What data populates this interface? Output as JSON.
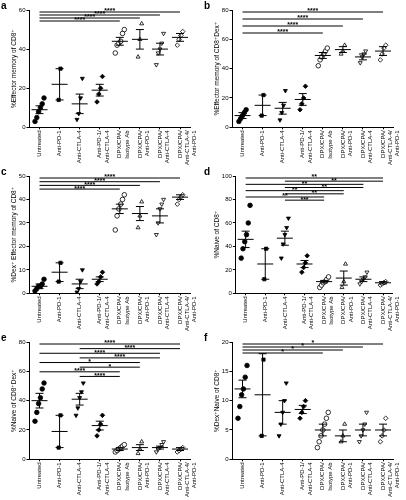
{
  "chart_data": [
    {
      "panel": "a",
      "type": "scatter",
      "y_label": "%Effector memory of CD8⁺",
      "categories": [
        "Untreated",
        "Anti-PD-1",
        "Anti-CTLA-4",
        "Anti-PD-1/\nAnti-CTLA-4",
        "DPX/CPA/\nIsotype Ab",
        "DPX/CPA/\nAnti-PD-1",
        "DPX/CPA/\nAnti-CTLA-4",
        "DPX/CPA/\nAnti-CTLA-4/\nAnti-PD-1"
      ],
      "groups": [
        {
          "marker": "circle",
          "points": [
            3,
            5,
            8,
            10,
            12,
            15
          ],
          "mean": 9,
          "error": 2
        },
        {
          "marker": "square",
          "points": [
            14,
            30
          ],
          "mean": 22,
          "error": 8
        },
        {
          "marker": "triangle-down",
          "points": [
            4,
            7,
            15,
            25
          ],
          "mean": 12,
          "error": 5
        },
        {
          "marker": "diamond",
          "points": [
            13,
            17,
            20,
            26
          ],
          "mean": 19,
          "error": 3
        },
        {
          "marker": "circle-open",
          "points": [
            38,
            42,
            43,
            44,
            48,
            50
          ],
          "mean": 44,
          "error": 2
        },
        {
          "marker": "triangle-open",
          "points": [
            36,
            45,
            53
          ],
          "mean": 45,
          "error": 5
        },
        {
          "marker": "triangle-down-open",
          "points": [
            32,
            38,
            40,
            43,
            48
          ],
          "mean": 40,
          "error": 3
        },
        {
          "marker": "diamond-open",
          "points": [
            42,
            45,
            47,
            49
          ],
          "mean": 46,
          "error": 2
        }
      ],
      "ylim": [
        0,
        60
      ],
      "yticks": [
        0,
        20,
        40,
        60
      ],
      "comparisons": [
        {
          "from": "Untreated",
          "to": "DPX/CPA/\nAnti-CTLA-4/\nAnti-PD-1",
          "label": "****"
        },
        {
          "from": "Untreated",
          "to": "DPX/CPA/\nAnti-CTLA-4",
          "label": "****"
        },
        {
          "from": "Untreated",
          "to": "DPX/CPA/\nAnti-PD-1",
          "label": "****"
        },
        {
          "from": "Untreated",
          "to": "DPX/CPA/\nIsotype Ab",
          "label": "****"
        }
      ]
    },
    {
      "panel": "b",
      "type": "scatter",
      "y_label": "%Effector memory of CD8⁺Dex⁺",
      "categories": [
        "Untreated",
        "Anti-PD-1",
        "Anti-CTLA-4",
        "Anti-PD-1/\nAnti-CTLA-4",
        "DPX/CPA/\nIsotype Ab",
        "DPX/CPA/\nAnti-PD-1",
        "DPX/CPA/\nAnti-CTLA-4",
        "DPX/CPA/\nAnti-CTLA-4/\nAnti-PD-1"
      ],
      "groups": [
        {
          "marker": "circle",
          "points": [
            4,
            6,
            8,
            10,
            12
          ],
          "mean": 8,
          "error": 2
        },
        {
          "marker": "square",
          "points": [
            8,
            22
          ],
          "mean": 15,
          "error": 7
        },
        {
          "marker": "triangle-down",
          "points": [
            5,
            10,
            15,
            25
          ],
          "mean": 13,
          "error": 4
        },
        {
          "marker": "diamond",
          "points": [
            12,
            16,
            20,
            28
          ],
          "mean": 19,
          "error": 4
        },
        {
          "marker": "circle-open",
          "points": [
            42,
            46,
            48,
            50,
            52,
            54
          ],
          "mean": 49,
          "error": 2
        },
        {
          "marker": "triangle-open",
          "points": [
            50,
            52,
            56
          ],
          "mean": 53,
          "error": 2
        },
        {
          "marker": "triangle-down-open",
          "points": [
            44,
            48,
            50,
            52
          ],
          "mean": 48,
          "error": 2
        },
        {
          "marker": "diamond-open",
          "points": [
            46,
            50,
            54,
            56
          ],
          "mean": 52,
          "error": 3
        }
      ],
      "ylim": [
        0,
        80
      ],
      "yticks": [
        0,
        20,
        40,
        60,
        80
      ],
      "comparisons": [
        {
          "from": "Untreated",
          "to": "DPX/CPA/\nAnti-CTLA-4/\nAnti-PD-1",
          "label": "****"
        },
        {
          "from": "Untreated",
          "to": "DPX/CPA/\nAnti-CTLA-4",
          "label": "****"
        },
        {
          "from": "Untreated",
          "to": "DPX/CPA/\nAnti-PD-1",
          "label": "****"
        },
        {
          "from": "Untreated",
          "to": "DPX/CPA/\nIsotype Ab",
          "label": "****"
        }
      ]
    },
    {
      "panel": "c",
      "type": "scatter",
      "y_label": "%Dex⁺ Effector memory of CD8⁺",
      "categories": [
        "Untreated",
        "Anti-PD-1",
        "Anti-CTLA-4",
        "Anti-PD-1/\nAnti-CTLA-4",
        "DPX/CPA/\nIsotype Ab",
        "DPX/CPA/\nAnti-PD-1",
        "DPX/CPA/\nAnti-CTLA-4",
        "DPX/CPA/\nAnti-CTLA-4/\nAnti-PD-1"
      ],
      "groups": [
        {
          "marker": "circle",
          "points": [
            1,
            2,
            3,
            3,
            4,
            6
          ],
          "mean": 3,
          "error": 1
        },
        {
          "marker": "square",
          "points": [
            5,
            13
          ],
          "mean": 9,
          "error": 4
        },
        {
          "marker": "triangle-down",
          "points": [
            0.5,
            2,
            5,
            10
          ],
          "mean": 4,
          "error": 2
        },
        {
          "marker": "diamond",
          "points": [
            4,
            5,
            7,
            9
          ],
          "mean": 6,
          "error": 1
        },
        {
          "marker": "circle-open",
          "points": [
            27,
            33,
            36,
            38,
            40,
            42
          ],
          "mean": 36,
          "error": 2
        },
        {
          "marker": "triangle-open",
          "points": [
            28,
            33,
            39
          ],
          "mean": 34,
          "error": 3
        },
        {
          "marker": "triangle-down-open",
          "points": [
            25,
            30,
            36,
            38,
            40
          ],
          "mean": 33,
          "error": 3
        },
        {
          "marker": "diamond-open",
          "points": [
            38,
            40,
            41,
            42
          ],
          "mean": 41,
          "error": 1
        }
      ],
      "ylim": [
        0,
        50
      ],
      "yticks": [
        0,
        10,
        20,
        30,
        40,
        50
      ],
      "comparisons": [
        {
          "from": "Untreated",
          "to": "DPX/CPA/\nAnti-CTLA-4/\nAnti-PD-1",
          "label": "****"
        },
        {
          "from": "Untreated",
          "to": "DPX/CPA/\nAnti-CTLA-4",
          "label": "****"
        },
        {
          "from": "Untreated",
          "to": "DPX/CPA/\nAnti-PD-1",
          "label": "****"
        },
        {
          "from": "Untreated",
          "to": "DPX/CPA/\nIsotype Ab",
          "label": "****"
        }
      ]
    },
    {
      "panel": "d",
      "type": "scatter",
      "y_label": "%Naive of CD8⁺",
      "categories": [
        "Untreated",
        "Anti-PD-1",
        "Anti-CTLA-4",
        "Anti-PD-1/\nAnti-CTLA-4",
        "DPX/CPA/\nIsotype Ab",
        "DPX/CPA/\nAnti-PD-1",
        "DPX/CPA/\nAnti-CTLA-4",
        "DPX/CPA/\nAnti-CTLA-4/\nAnti-PD-1"
      ],
      "groups": [
        {
          "marker": "circle",
          "points": [
            30,
            38,
            44,
            50,
            60,
            75
          ],
          "mean": 46,
          "error": 7
        },
        {
          "marker": "square",
          "points": [
            12,
            38
          ],
          "mean": 25,
          "error": 13
        },
        {
          "marker": "triangle-down",
          "points": [
            30,
            42,
            50,
            56,
            64
          ],
          "mean": 47,
          "error": 6
        },
        {
          "marker": "diamond",
          "points": [
            18,
            22,
            26,
            32
          ],
          "mean": 25,
          "error": 3
        },
        {
          "marker": "circle-open",
          "points": [
            5,
            7,
            9,
            10,
            12,
            14
          ],
          "mean": 10,
          "error": 1
        },
        {
          "marker": "triangle-open",
          "points": [
            5,
            10,
            25
          ],
          "mean": 13,
          "error": 6
        },
        {
          "marker": "triangle-down-open",
          "points": [
            8,
            10,
            12,
            14,
            18
          ],
          "mean": 12,
          "error": 2
        },
        {
          "marker": "diamond-open",
          "points": [
            7,
            8,
            9,
            10
          ],
          "mean": 9,
          "error": 1
        }
      ],
      "ylim": [
        0,
        100
      ],
      "yticks": [
        0,
        20,
        40,
        60,
        80,
        100
      ],
      "comparisons": [
        {
          "from": "Untreated",
          "to": "DPX/CPA/\nAnti-CTLA-4/\nAnti-PD-1",
          "label": "**"
        },
        {
          "from": "Anti-CTLA-4",
          "to": "DPX/CPA/\nAnti-CTLA-4/\nAnti-PD-1",
          "label": "**"
        },
        {
          "from": "Untreated",
          "to": "DPX/CPA/\nAnti-CTLA-4",
          "label": "**"
        },
        {
          "from": "Anti-CTLA-4",
          "to": "DPX/CPA/\nAnti-CTLA-4",
          "label": "**"
        },
        {
          "from": "Untreated",
          "to": "DPX/CPA/\nAnti-PD-1",
          "label": "**"
        },
        {
          "from": "Anti-CTLA-4",
          "to": "DPX/CPA/\nAnti-PD-1",
          "label": "**"
        },
        {
          "from": "Untreated",
          "to": "DPX/CPA/\nIsotype Ab",
          "label": "**"
        },
        {
          "from": "Anti-CTLA-4",
          "to": "DPX/CPA/\nIsotype Ab",
          "label": "***"
        }
      ]
    },
    {
      "panel": "e",
      "type": "scatter",
      "y_label": "%Naive of CD8⁺Dex⁺",
      "categories": [
        "Untreated",
        "Anti-PD-1",
        "Anti-CTLA-4",
        "Anti-PD-1/\nAnti-CTLA-4",
        "DPX/CPA/\nIsotype Ab",
        "DPX/CPA/\nAnti-PD-1",
        "DPX/CPA/\nAnti-CTLA-4",
        "DPX/CPA/\nAnti-CTLA-4/\nAnti-PD-1"
      ],
      "groups": [
        {
          "marker": "circle",
          "points": [
            26,
            32,
            38,
            42,
            48,
            52
          ],
          "mean": 40,
          "error": 5
        },
        {
          "marker": "square",
          "points": [
            8,
            30
          ],
          "mean": 19,
          "error": 11
        },
        {
          "marker": "triangle-down",
          "points": [
            30,
            35,
            42,
            46,
            52
          ],
          "mean": 41,
          "error": 4
        },
        {
          "marker": "diamond",
          "points": [
            16,
            20,
            24,
            30
          ],
          "mean": 23,
          "error": 3
        },
        {
          "marker": "circle-open",
          "points": [
            5,
            6,
            7,
            8,
            9,
            10
          ],
          "mean": 7,
          "error": 1
        },
        {
          "marker": "triangle-open",
          "points": [
            4,
            7,
            12
          ],
          "mean": 8,
          "error": 2
        },
        {
          "marker": "triangle-down-open",
          "points": [
            5,
            7,
            8,
            10,
            12
          ],
          "mean": 8,
          "error": 1
        },
        {
          "marker": "diamond-open",
          "points": [
            5,
            6,
            7,
            8
          ],
          "mean": 7,
          "error": 1
        }
      ],
      "ylim": [
        0,
        80
      ],
      "yticks": [
        0,
        20,
        40,
        60,
        80
      ],
      "comparisons": [
        {
          "from": "Untreated",
          "to": "DPX/CPA/\nAnti-CTLA-4/\nAnti-PD-1",
          "label": "****"
        },
        {
          "from": "Anti-CTLA-4",
          "to": "DPX/CPA/\nAnti-CTLA-4/\nAnti-PD-1",
          "label": "****"
        },
        {
          "from": "Untreated",
          "to": "DPX/CPA/\nAnti-CTLA-4",
          "label": "****"
        },
        {
          "from": "Anti-CTLA-4",
          "to": "DPX/CPA/\nAnti-CTLA-4",
          "label": "****"
        },
        {
          "from": "Untreated",
          "to": "DPX/CPA/\nAnti-PD-1",
          "label": "*"
        },
        {
          "from": "Anti-CTLA-4",
          "to": "DPX/CPA/\nAnti-PD-1",
          "label": "*"
        },
        {
          "from": "Untreated",
          "to": "DPX/CPA/\nIsotype Ab",
          "label": "****"
        },
        {
          "from": "Anti-CTLA-4",
          "to": "DPX/CPA/\nIsotype Ab",
          "label": "****"
        }
      ]
    },
    {
      "panel": "f",
      "type": "scatter",
      "y_label": "%Dex⁺Naive of CD8⁺",
      "categories": [
        "Untreated",
        "Anti-PD-1",
        "Anti-CTLA-4",
        "Anti-PD-1/\nAnti-CTLA-4",
        "DPX/CPA/\nIsotype Ab",
        "DPX/CPA/\nAnti-PD-1",
        "DPX/CPA/\nAnti-CTLA-4",
        "DPX/CPA/\nAnti-CTLA-4/\nAnti-PD-1"
      ],
      "groups": [
        {
          "marker": "circle",
          "points": [
            7,
            9,
            11,
            12,
            14,
            16
          ],
          "mean": 12,
          "error": 1.5
        },
        {
          "marker": "square",
          "points": [
            4,
            17
          ],
          "mean": 11,
          "error": 7
        },
        {
          "marker": "triangle-down",
          "points": [
            4,
            6,
            8,
            10,
            13
          ],
          "mean": 8,
          "error": 2
        },
        {
          "marker": "diamond",
          "points": [
            7,
            8,
            9,
            10
          ],
          "mean": 8.5,
          "error": 0.7
        },
        {
          "marker": "circle-open",
          "points": [
            2,
            3,
            4,
            5,
            6,
            7,
            8
          ],
          "mean": 5,
          "error": 1
        },
        {
          "marker": "triangle-open",
          "points": [
            3,
            4,
            6
          ],
          "mean": 4,
          "error": 1
        },
        {
          "marker": "triangle-down-open",
          "points": [
            3,
            4,
            5,
            6,
            8
          ],
          "mean": 5,
          "error": 1
        },
        {
          "marker": "diamond-open",
          "points": [
            3,
            4,
            5,
            7
          ],
          "mean": 5,
          "error": 1
        }
      ],
      "ylim": [
        0,
        20
      ],
      "yticks": [
        0,
        5,
        10,
        15,
        20
      ],
      "comparisons": [
        {
          "from": "Untreated",
          "to": "DPX/CPA/\nAnti-CTLA-4/\nAnti-PD-1",
          "label": "*"
        },
        {
          "from": "Untreated",
          "to": "DPX/CPA/\nAnti-CTLA-4",
          "label": "*"
        },
        {
          "from": "Untreated",
          "to": "DPX/CPA/\nAnti-PD-1",
          "label": "*"
        },
        {
          "from": "Untreated",
          "to": "DPX/CPA/\nIsotype Ab",
          "label": "*"
        }
      ]
    }
  ]
}
